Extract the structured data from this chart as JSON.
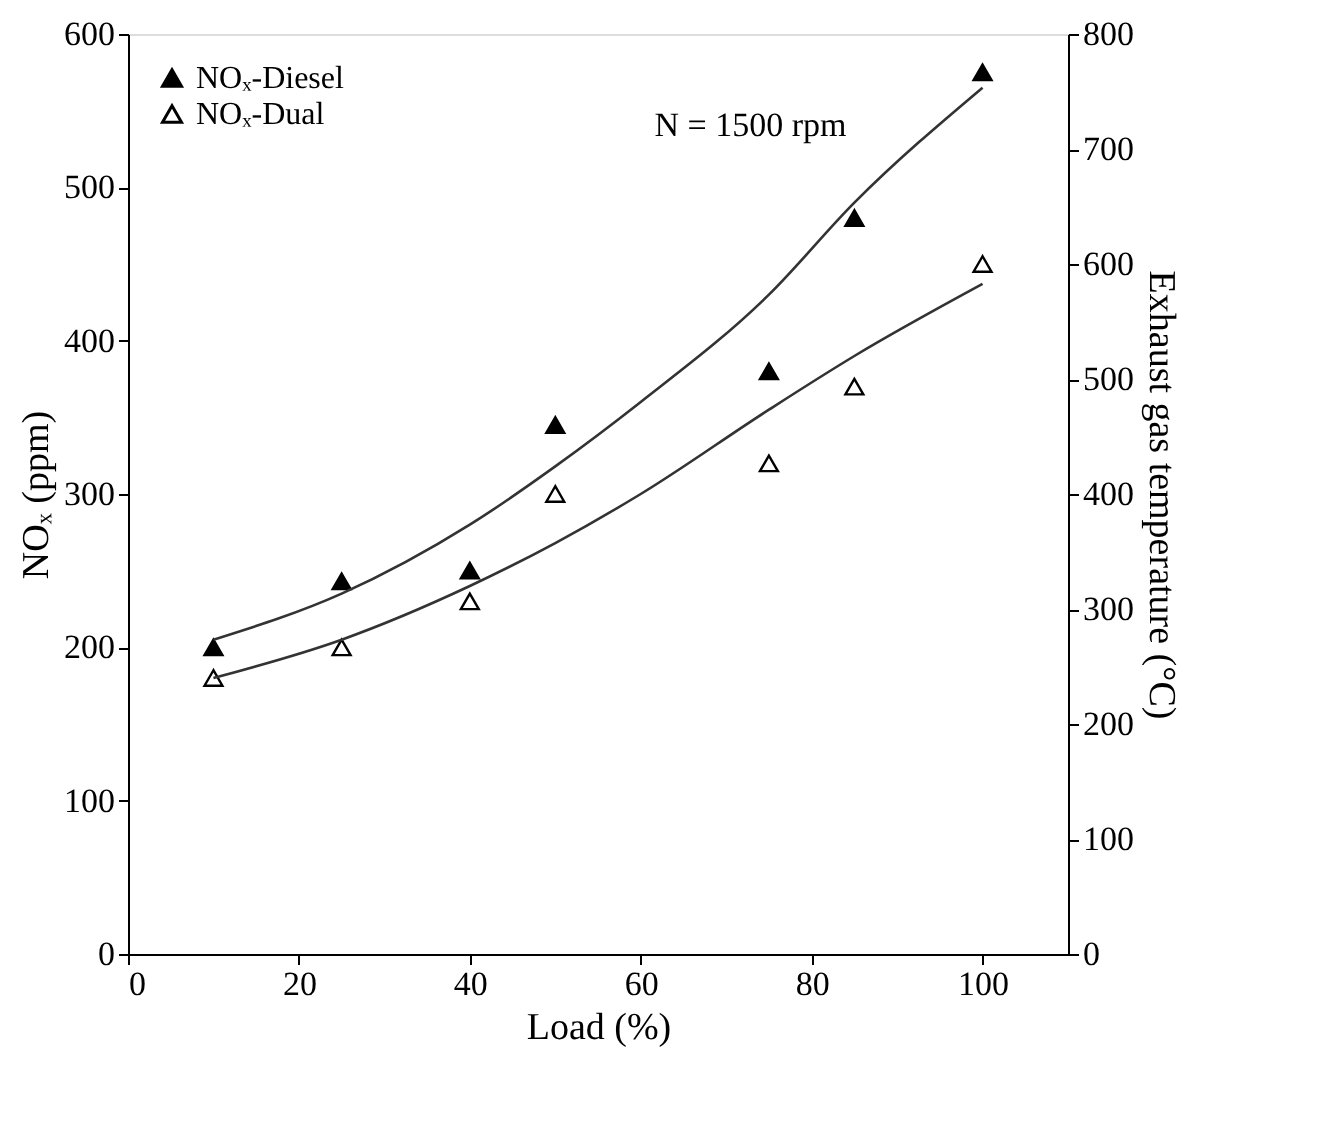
{
  "chart_data": {
    "type": "scatter",
    "xlabel": "Load (%)",
    "ylabel": "NOₓ (ppm)",
    "y2label": "Exhaust gas temperature (°C)",
    "xlim": [
      0,
      110
    ],
    "xticks": [
      0,
      20,
      40,
      60,
      80,
      100
    ],
    "ylim": [
      0,
      600
    ],
    "yticks": [
      0,
      100,
      200,
      300,
      400,
      500,
      600
    ],
    "y2lim": [
      0,
      800
    ],
    "y2ticks": [
      0,
      100,
      200,
      300,
      400,
      500,
      600,
      700,
      800
    ],
    "grid": false,
    "legend": "top left",
    "annotations": [
      "N = 1500 rpm"
    ],
    "series": [
      {
        "name": "NOₓ-Diesel",
        "marker": "triangle",
        "color": "#000000",
        "x": [
          10,
          25,
          40,
          50,
          75,
          85,
          100
        ],
        "values": [
          200,
          243,
          250,
          345,
          380,
          480,
          575
        ]
      },
      {
        "name": "NOₓ-Dual",
        "marker": "triangle",
        "color": "#000000",
        "x": [
          10,
          25,
          40,
          50,
          75,
          85,
          100
        ],
        "values": [
          180,
          200,
          230,
          300,
          320,
          370,
          450
        ]
      },
      {
        "type": "line",
        "marker": "none",
        "line_style": "solid",
        "color": "#333333",
        "x": [
          10,
          25,
          40,
          50,
          60,
          75,
          85,
          100
        ],
        "values": [
          205,
          235,
          280,
          318,
          360,
          430,
          490,
          565
        ]
      },
      {
        "type": "line",
        "marker": "none",
        "line_style": "solid",
        "color": "#333333",
        "x": [
          10,
          25,
          40,
          50,
          60,
          75,
          85,
          100
        ],
        "values": [
          180,
          205,
          240,
          268,
          300,
          355,
          390,
          437
        ]
      }
    ]
  }
}
